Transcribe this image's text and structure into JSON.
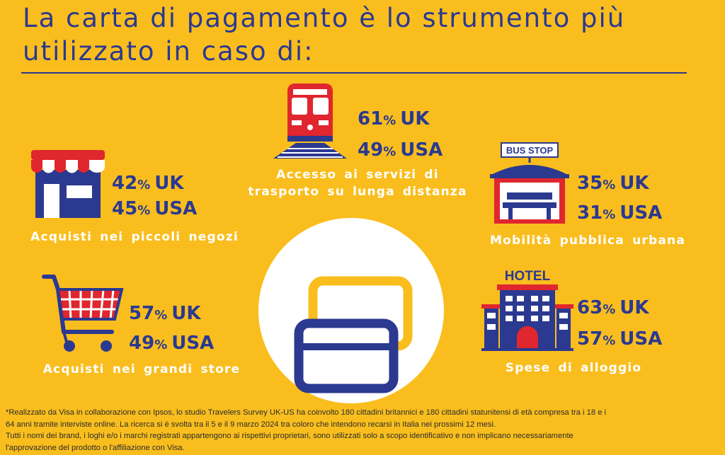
{
  "title": {
    "line1": "La carta di pagamento è lo strumento più",
    "line2": "utilizzato in caso di:"
  },
  "categories": {
    "trasporto": {
      "uk_value": "61",
      "uk_unit": "%",
      "uk_label": "UK",
      "usa_value": "49",
      "usa_unit": "%",
      "usa_label": "USA",
      "caption_line1": "Accesso ai servizi di",
      "caption_line2": "trasporto su lunga distanza",
      "icon": "train-icon"
    },
    "piccoli_negozi": {
      "uk_value": "42",
      "uk_unit": "%",
      "uk_label": "UK",
      "usa_value": "45",
      "usa_unit": "%",
      "usa_label": "USA",
      "caption_line1": "Acquisti nei piccoli negozi",
      "icon": "shop-icon"
    },
    "mobilita": {
      "uk_value": "35",
      "uk_unit": "%",
      "uk_label": "UK",
      "usa_value": "31",
      "usa_unit": "%",
      "usa_label": "USA",
      "caption_line1": "Mobilità pubblica urbana",
      "sign_text": "BUS STOP",
      "icon": "bus-stop-icon"
    },
    "grandi_store": {
      "uk_value": "57",
      "uk_unit": "%",
      "uk_label": "UK",
      "usa_value": "49",
      "usa_unit": "%",
      "usa_label": "USA",
      "caption_line1": "Acquisti nei grandi store",
      "icon": "shopping-cart-icon"
    },
    "alloggio": {
      "uk_value": "63",
      "uk_unit": "%",
      "uk_label": "UK",
      "usa_value": "57",
      "usa_unit": "%",
      "usa_label": "USA",
      "caption_line1": "Spese di alloggio",
      "sign_text": "HOTEL",
      "icon": "hotel-icon"
    }
  },
  "center_icon": "payment-cards-icon",
  "footnote": {
    "line1": "*Realizzato da Visa in collaborazione con Ipsos, lo studio Travelers Survey UK-US ha coinvolto 180 cittadini britannici e 180 cittadini statunitensi di età compresa tra i 18 e i",
    "line2": "64 anni tramite interviste online. La ricerca si è svolta tra il 5 e il 9 marzo 2024 tra coloro che intendono recarsi in Italia nei prossimi 12 mesi.",
    "line3": "Tutti i nomi dei brand, i loghi e/o i marchi registrati appartengono ai rispettivi proprietari, sono utilizzati solo a scopo identificativo e non implicano necessariamente",
    "line4": "l'approvazione del prodotto o l'affiliazione con Visa."
  },
  "colors": {
    "background": "#F9BE1E",
    "navy": "#2B3990",
    "red": "#E0262E",
    "white": "#FFFFFF"
  }
}
